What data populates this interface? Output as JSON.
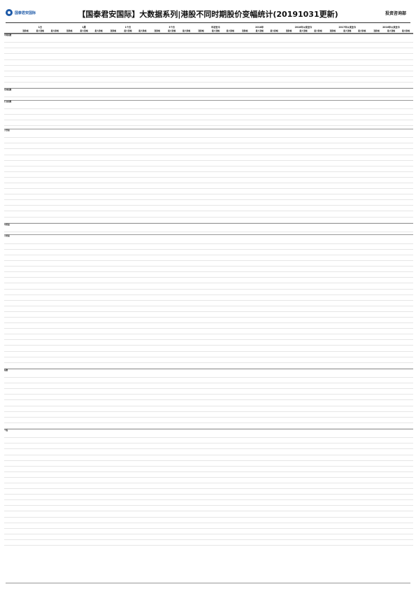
{
  "header": {
    "logo_text": "国泰君安国际",
    "title": "【国泰君安国际】大数据系列|港股不同时期股价变幅统计(20191031更新)",
    "right_title": "投资咨询部"
  },
  "table": {
    "period_groups": [
      "1日",
      "1周",
      "1个月",
      "3个月",
      "年初至今",
      "2018年",
      "2018年以来至今",
      "2017年以来至今",
      "2016年以来至今"
    ],
    "col_labels": [
      "涨跌幅",
      "最大涨幅",
      "最大跌幅",
      "涨跌幅",
      "最大涨幅",
      "最大跌幅"
    ],
    "section_labels": [
      "中资指数",
      "全球指数",
      "行业指数",
      "大型股",
      "中型股",
      "小型股",
      "指数",
      "个股"
    ]
  }
}
